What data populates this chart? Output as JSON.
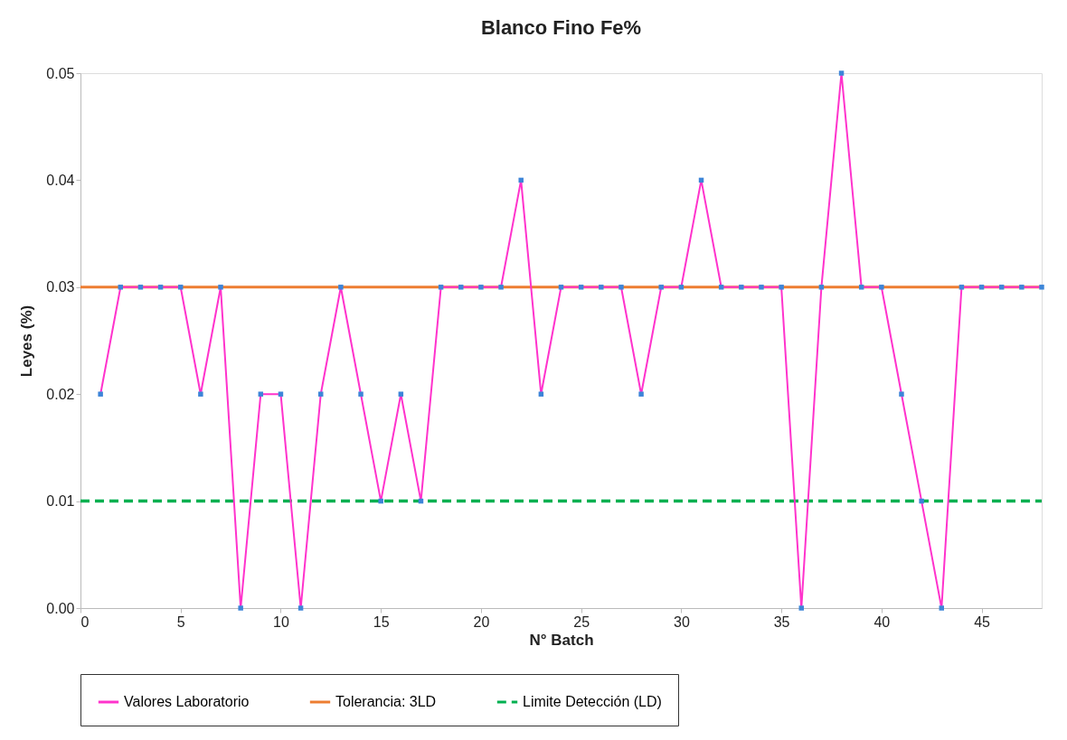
{
  "chart_data": {
    "type": "line",
    "title": "Blanco Fino Fe%",
    "xlabel": "N° Batch",
    "ylabel": "Leyes (%)",
    "x": [
      1,
      2,
      3,
      4,
      5,
      6,
      7,
      8,
      9,
      10,
      11,
      12,
      13,
      14,
      15,
      16,
      17,
      18,
      19,
      20,
      21,
      22,
      23,
      24,
      25,
      26,
      27,
      28,
      29,
      30,
      31,
      32,
      33,
      34,
      35,
      36,
      37,
      38,
      39,
      40,
      41,
      42,
      43,
      44,
      45,
      46,
      47,
      48
    ],
    "series": [
      {
        "name": "Valores Laboratorio",
        "color": "#ff33cc",
        "marker": "square",
        "line_style": "solid",
        "values": [
          0.02,
          0.03,
          0.03,
          0.03,
          0.03,
          0.02,
          0.03,
          0.0,
          0.02,
          0.02,
          0.0,
          0.02,
          0.03,
          0.02,
          0.01,
          0.02,
          0.01,
          0.03,
          0.03,
          0.03,
          0.03,
          0.04,
          0.02,
          0.03,
          0.03,
          0.03,
          0.03,
          0.02,
          0.03,
          0.03,
          0.04,
          0.03,
          0.03,
          0.03,
          0.03,
          0.0,
          0.03,
          0.05,
          0.03,
          0.03,
          0.02,
          0.01,
          0.0,
          0.03,
          0.03,
          0.03,
          0.03,
          0.03
        ]
      }
    ],
    "ref_lines": [
      {
        "axis": "y",
        "value": 0.03,
        "label": "Tolerancia: 3LD",
        "color": "#ed7d31",
        "line_style": "solid"
      },
      {
        "axis": "y",
        "value": 0.01,
        "label": "Limite Detección (LD)",
        "color": "#00b050",
        "line_style": "dashed"
      }
    ],
    "xlim": [
      0,
      48
    ],
    "xticks": [
      0,
      5,
      10,
      15,
      20,
      25,
      30,
      35,
      40,
      45
    ],
    "ylim": [
      0,
      0.05
    ],
    "yticks": [
      {
        "value": 0,
        "label": "0.00"
      },
      {
        "value": 0.01,
        "label": "0.01"
      },
      {
        "value": 0.02,
        "label": "0.02"
      },
      {
        "value": 0.03,
        "label": "0.03"
      },
      {
        "value": 0.04,
        "label": "0.04"
      },
      {
        "value": 0.05,
        "label": "0.05"
      }
    ],
    "grid": false,
    "legend": "bottom"
  }
}
